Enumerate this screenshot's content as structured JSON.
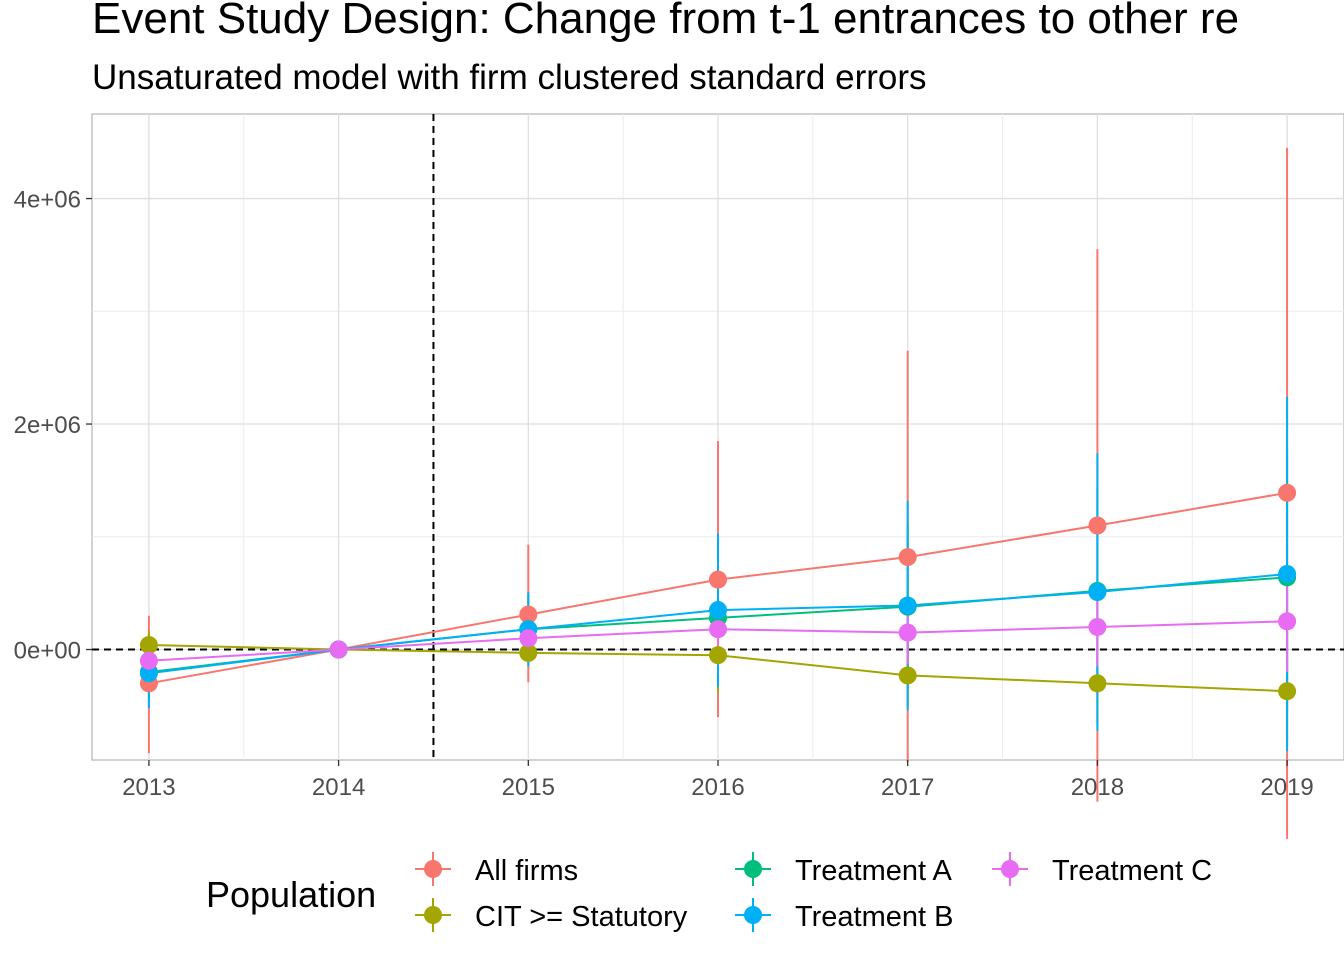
{
  "chart_data": {
    "type": "line",
    "title": "Event Study Design: Change from t-1 entrances to other re",
    "subtitle": "Unsaturated model with firm clustered standard errors",
    "xlabel": "",
    "ylabel": "",
    "x": [
      2013,
      2014,
      2015,
      2016,
      2017,
      2018,
      2019
    ],
    "xlim": [
      2012.7,
      2019.3
    ],
    "ylim": [
      -980000,
      4750000
    ],
    "y_ticks": [
      0,
      2000000,
      4000000
    ],
    "y_tick_labels": [
      "0e+00",
      "2e+06",
      "4e+06"
    ],
    "x_tick_labels": [
      "2013",
      "2014",
      "2015",
      "2016",
      "2017",
      "2018",
      "2019"
    ],
    "vline_x": 2014.5,
    "hline_y": 0,
    "grid": true,
    "legend": {
      "title": "Population",
      "position": "bottom"
    },
    "series": [
      {
        "name": "All firms",
        "color": "#F8766D",
        "values": [
          -300000,
          0,
          310000,
          620000,
          820000,
          1100000,
          1390000
        ],
        "lower": [
          -920000,
          0,
          -290000,
          -600000,
          -1000000,
          -1350000,
          -1680000
        ],
        "upper": [
          300000,
          0,
          930000,
          1850000,
          2650000,
          3550000,
          4450000
        ]
      },
      {
        "name": "CIT >= Statutory",
        "color": "#A3A500",
        "values": [
          40000,
          0,
          -30000,
          -50000,
          -230000,
          -300000,
          -370000
        ],
        "lower": [
          -80000,
          0,
          -100000,
          -380000,
          -500000,
          -650000,
          -800000
        ],
        "upper": [
          160000,
          0,
          40000,
          280000,
          40000,
          50000,
          60000
        ]
      },
      {
        "name": "Treatment A",
        "color": "#00BF7D",
        "values": [
          -200000,
          0,
          180000,
          280000,
          380000,
          520000,
          640000
        ],
        "lower": [
          -450000,
          0,
          -120000,
          -250000,
          -350000,
          -400000,
          -500000
        ],
        "upper": [
          50000,
          0,
          480000,
          810000,
          1110000,
          1440000,
          1780000
        ]
      },
      {
        "name": "Treatment B",
        "color": "#00B0F6",
        "values": [
          -210000,
          0,
          180000,
          350000,
          390000,
          510000,
          670000
        ],
        "lower": [
          -520000,
          0,
          -150000,
          -330000,
          -540000,
          -720000,
          -900000
        ],
        "upper": [
          100000,
          0,
          510000,
          1030000,
          1320000,
          1740000,
          2240000
        ]
      },
      {
        "name": "Treatment C",
        "color": "#E76BF3",
        "values": [
          -100000,
          0,
          100000,
          180000,
          150000,
          200000,
          250000
        ],
        "lower": [
          -220000,
          0,
          0,
          -50000,
          -130000,
          -150000,
          -200000
        ],
        "upper": [
          20000,
          0,
          200000,
          410000,
          430000,
          550000,
          700000
        ]
      }
    ]
  }
}
